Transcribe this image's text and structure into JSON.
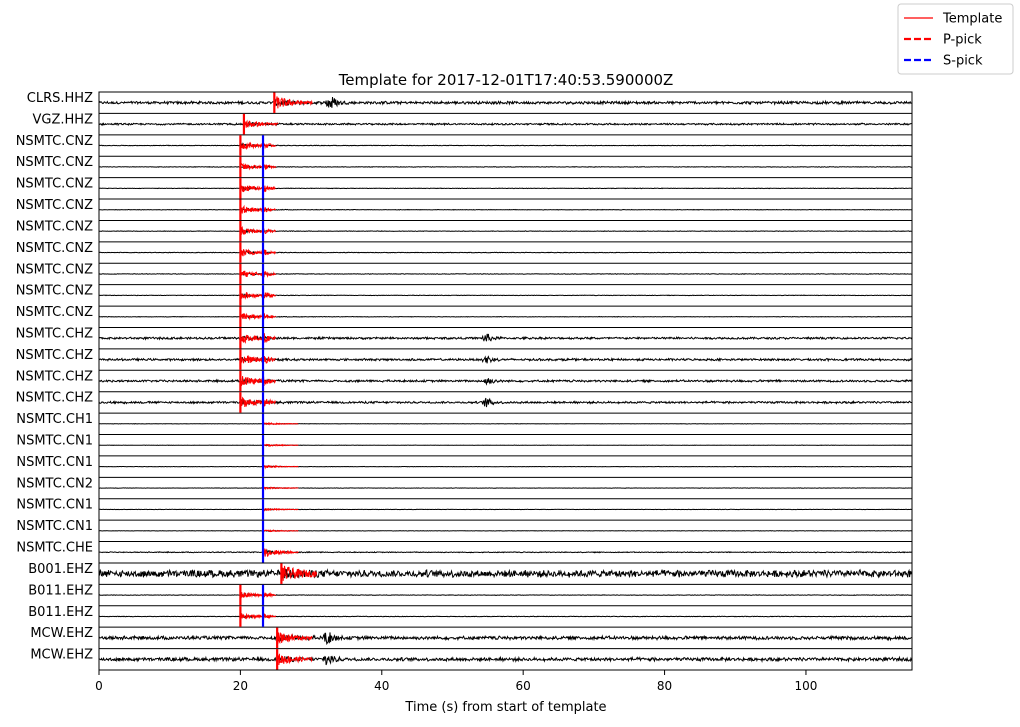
{
  "chart_data": {
    "type": "line",
    "title": "Template for 2017-12-01T17:40:53.590000Z",
    "xlabel": "Time (s) from start of template",
    "ylabel": "",
    "xlim": [
      0,
      115
    ],
    "xticks": [
      "0",
      "20",
      "40",
      "60",
      "80",
      "100"
    ],
    "legend": {
      "position": "top-right",
      "entries": [
        {
          "label": "Template",
          "color": "#ff0000",
          "style": "solid"
        },
        {
          "label": "P-pick",
          "color": "#ff0000",
          "style": "dashed"
        },
        {
          "label": "S-pick",
          "color": "#0000ff",
          "style": "dashed"
        }
      ]
    },
    "colors": {
      "waveform": "#000000",
      "template": "#ff0000",
      "p_pick": "#ff0000",
      "s_pick": "#0000ff"
    },
    "channels": [
      {
        "label": "CLRS.HHZ",
        "template_start": 24.8,
        "template_end": 30.2,
        "p_pick": 24.8,
        "s_pick": null,
        "noise": 0.16,
        "template_amp": 0.7,
        "events": [
          {
            "t": 32.7,
            "amp": 0.9
          }
        ]
      },
      {
        "label": "VGZ.HHZ",
        "template_start": 20.5,
        "template_end": 25.4,
        "p_pick": 20.5,
        "s_pick": null,
        "noise": 0.1,
        "template_amp": 0.45,
        "events": []
      },
      {
        "label": "NSMTC.CNZ",
        "template_start": 20.0,
        "template_end": 25.0,
        "p_pick": 20.0,
        "s_pick": 23.2,
        "noise": 0.03,
        "template_amp": 0.45,
        "events": []
      },
      {
        "label": "NSMTC.CNZ",
        "template_start": 20.0,
        "template_end": 25.0,
        "p_pick": 20.0,
        "s_pick": 23.2,
        "noise": 0.03,
        "template_amp": 0.45,
        "events": []
      },
      {
        "label": "NSMTC.CNZ",
        "template_start": 20.0,
        "template_end": 25.0,
        "p_pick": 20.0,
        "s_pick": 23.2,
        "noise": 0.03,
        "template_amp": 0.45,
        "events": []
      },
      {
        "label": "NSMTC.CNZ",
        "template_start": 20.0,
        "template_end": 25.0,
        "p_pick": 20.0,
        "s_pick": 23.2,
        "noise": 0.03,
        "template_amp": 0.45,
        "events": []
      },
      {
        "label": "NSMTC.CNZ",
        "template_start": 20.0,
        "template_end": 25.0,
        "p_pick": 20.0,
        "s_pick": 23.2,
        "noise": 0.03,
        "template_amp": 0.45,
        "events": []
      },
      {
        "label": "NSMTC.CNZ",
        "template_start": 20.0,
        "template_end": 25.0,
        "p_pick": 20.0,
        "s_pick": 23.2,
        "noise": 0.03,
        "template_amp": 0.45,
        "events": []
      },
      {
        "label": "NSMTC.CNZ",
        "template_start": 20.0,
        "template_end": 25.0,
        "p_pick": 20.0,
        "s_pick": 23.2,
        "noise": 0.03,
        "template_amp": 0.45,
        "events": []
      },
      {
        "label": "NSMTC.CNZ",
        "template_start": 20.0,
        "template_end": 25.0,
        "p_pick": 20.0,
        "s_pick": 23.2,
        "noise": 0.03,
        "template_amp": 0.45,
        "events": []
      },
      {
        "label": "NSMTC.CNZ",
        "template_start": 20.0,
        "template_end": 25.0,
        "p_pick": 20.0,
        "s_pick": 23.2,
        "noise": 0.03,
        "template_amp": 0.45,
        "events": []
      },
      {
        "label": "NSMTC.CHZ",
        "template_start": 20.0,
        "template_end": 25.0,
        "p_pick": 20.0,
        "s_pick": 23.2,
        "noise": 0.12,
        "template_amp": 0.55,
        "events": [
          {
            "t": 54.8,
            "amp": 0.5
          }
        ]
      },
      {
        "label": "NSMTC.CHZ",
        "template_start": 20.0,
        "template_end": 25.0,
        "p_pick": 20.0,
        "s_pick": 23.2,
        "noise": 0.12,
        "template_amp": 0.55,
        "events": [
          {
            "t": 54.8,
            "amp": 0.5
          }
        ]
      },
      {
        "label": "NSMTC.CHZ",
        "template_start": 20.0,
        "template_end": 25.0,
        "p_pick": 20.0,
        "s_pick": 23.2,
        "noise": 0.12,
        "template_amp": 0.55,
        "events": [
          {
            "t": 54.8,
            "amp": 0.5
          }
        ]
      },
      {
        "label": "NSMTC.CHZ",
        "template_start": 20.0,
        "template_end": 25.0,
        "p_pick": 20.0,
        "s_pick": 23.2,
        "noise": 0.12,
        "template_amp": 0.55,
        "events": [
          {
            "t": 54.8,
            "amp": 0.5
          }
        ]
      },
      {
        "label": "NSMTC.CH1",
        "template_start": 23.2,
        "template_end": 28.2,
        "p_pick": null,
        "s_pick": 23.2,
        "noise": 0.02,
        "template_amp": 0.12,
        "events": []
      },
      {
        "label": "NSMTC.CN1",
        "template_start": 23.2,
        "template_end": 28.2,
        "p_pick": null,
        "s_pick": 23.2,
        "noise": 0.02,
        "template_amp": 0.12,
        "events": []
      },
      {
        "label": "NSMTC.CN1",
        "template_start": 23.2,
        "template_end": 28.2,
        "p_pick": null,
        "s_pick": 23.2,
        "noise": 0.02,
        "template_amp": 0.12,
        "events": []
      },
      {
        "label": "NSMTC.CN2",
        "template_start": 23.2,
        "template_end": 28.2,
        "p_pick": null,
        "s_pick": 23.2,
        "noise": 0.02,
        "template_amp": 0.12,
        "events": []
      },
      {
        "label": "NSMTC.CN1",
        "template_start": 23.2,
        "template_end": 28.2,
        "p_pick": null,
        "s_pick": 23.2,
        "noise": 0.02,
        "template_amp": 0.12,
        "events": []
      },
      {
        "label": "NSMTC.CN1",
        "template_start": 23.2,
        "template_end": 28.2,
        "p_pick": null,
        "s_pick": 23.2,
        "noise": 0.02,
        "template_amp": 0.12,
        "events": []
      },
      {
        "label": "NSMTC.CHE",
        "template_start": 23.2,
        "template_end": 28.2,
        "p_pick": null,
        "s_pick": 23.2,
        "noise": 0.05,
        "template_amp": 0.5,
        "events": []
      },
      {
        "label": "B001.EHZ",
        "template_start": 25.8,
        "template_end": 30.8,
        "p_pick": 25.8,
        "s_pick": null,
        "noise": 0.42,
        "template_amp": 0.75,
        "events": []
      },
      {
        "label": "B011.EHZ",
        "template_start": 20.0,
        "template_end": 25.0,
        "p_pick": 20.0,
        "s_pick": 23.2,
        "noise": 0.03,
        "template_amp": 0.35,
        "events": []
      },
      {
        "label": "B011.EHZ",
        "template_start": 20.0,
        "template_end": 25.0,
        "p_pick": 20.0,
        "s_pick": 23.2,
        "noise": 0.03,
        "template_amp": 0.35,
        "events": []
      },
      {
        "label": "MCW.EHZ",
        "template_start": 25.2,
        "template_end": 30.2,
        "p_pick": 25.2,
        "s_pick": null,
        "noise": 0.2,
        "template_amp": 0.6,
        "events": [
          {
            "t": 32.3,
            "amp": 0.7
          }
        ]
      },
      {
        "label": "MCW.EHZ",
        "template_start": 25.2,
        "template_end": 30.2,
        "p_pick": 25.2,
        "s_pick": null,
        "noise": 0.2,
        "template_amp": 0.6,
        "events": [
          {
            "t": 32.3,
            "amp": 0.7
          }
        ]
      }
    ]
  }
}
